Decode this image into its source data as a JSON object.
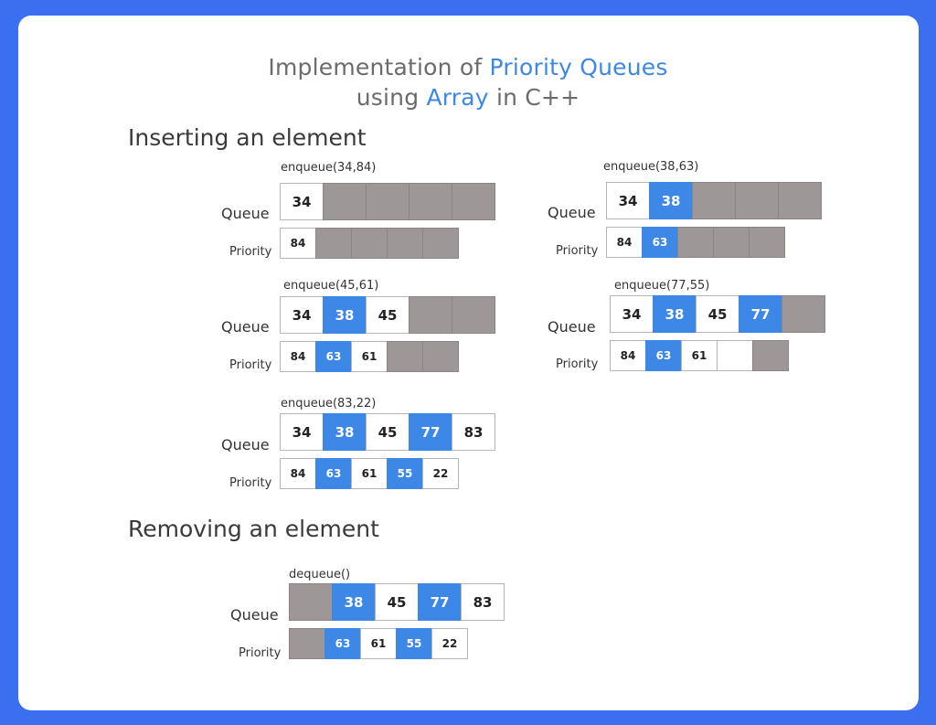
{
  "title": {
    "line1_a": "Implementation of ",
    "line1_b": "Priority Queues",
    "line2_a": "using ",
    "line2_b": "Array",
    "line2_c": " in C++"
  },
  "sections": {
    "insert": "Inserting an element",
    "remove": "Removing an element"
  },
  "labels": {
    "queue": "Queue",
    "priority": "Priority"
  },
  "colors": {
    "accent": "#3d87e6",
    "empty_slot": "#9e9797",
    "background": "#3b6ff0"
  },
  "steps": [
    {
      "op": "enqueue(34,84)",
      "queue": [
        {
          "v": "34",
          "s": "filled"
        },
        {
          "v": "",
          "s": "empty"
        },
        {
          "v": "",
          "s": "empty"
        },
        {
          "v": "",
          "s": "empty"
        },
        {
          "v": "",
          "s": "empty"
        }
      ],
      "priority": [
        {
          "v": "84",
          "s": "filled"
        },
        {
          "v": "",
          "s": "empty"
        },
        {
          "v": "",
          "s": "empty"
        },
        {
          "v": "",
          "s": "empty"
        },
        {
          "v": "",
          "s": "empty"
        }
      ]
    },
    {
      "op": "enqueue(38,63)",
      "queue": [
        {
          "v": "34",
          "s": "filled"
        },
        {
          "v": "38",
          "s": "blue"
        },
        {
          "v": "",
          "s": "empty"
        },
        {
          "v": "",
          "s": "empty"
        },
        {
          "v": "",
          "s": "empty"
        }
      ],
      "priority": [
        {
          "v": "84",
          "s": "filled"
        },
        {
          "v": "63",
          "s": "blue"
        },
        {
          "v": "",
          "s": "empty"
        },
        {
          "v": "",
          "s": "empty"
        },
        {
          "v": "",
          "s": "empty"
        }
      ]
    },
    {
      "op": "enqueue(45,61)",
      "queue": [
        {
          "v": "34",
          "s": "filled"
        },
        {
          "v": "38",
          "s": "blue"
        },
        {
          "v": "45",
          "s": "filled"
        },
        {
          "v": "",
          "s": "empty"
        },
        {
          "v": "",
          "s": "empty"
        }
      ],
      "priority": [
        {
          "v": "84",
          "s": "filled"
        },
        {
          "v": "63",
          "s": "blue"
        },
        {
          "v": "61",
          "s": "filled"
        },
        {
          "v": "",
          "s": "empty"
        },
        {
          "v": "",
          "s": "empty"
        }
      ]
    },
    {
      "op": "enqueue(77,55)",
      "queue": [
        {
          "v": "34",
          "s": "filled"
        },
        {
          "v": "38",
          "s": "blue"
        },
        {
          "v": "45",
          "s": "filled"
        },
        {
          "v": "77",
          "s": "blue"
        },
        {
          "v": "",
          "s": "empty"
        }
      ],
      "priority": [
        {
          "v": "84",
          "s": "filled"
        },
        {
          "v": "63",
          "s": "blue"
        },
        {
          "v": "61",
          "s": "filled"
        },
        {
          "v": "",
          "s": "blank"
        },
        {
          "v": "",
          "s": "empty"
        }
      ]
    },
    {
      "op": "enqueue(83,22)",
      "queue": [
        {
          "v": "34",
          "s": "filled"
        },
        {
          "v": "38",
          "s": "blue"
        },
        {
          "v": "45",
          "s": "filled"
        },
        {
          "v": "77",
          "s": "blue"
        },
        {
          "v": "83",
          "s": "filled"
        }
      ],
      "priority": [
        {
          "v": "84",
          "s": "filled"
        },
        {
          "v": "63",
          "s": "blue"
        },
        {
          "v": "61",
          "s": "filled"
        },
        {
          "v": "55",
          "s": "blue"
        },
        {
          "v": "22",
          "s": "filled"
        }
      ]
    },
    {
      "op": "dequeue()",
      "queue": [
        {
          "v": "",
          "s": "empty"
        },
        {
          "v": "38",
          "s": "blue"
        },
        {
          "v": "45",
          "s": "filled"
        },
        {
          "v": "77",
          "s": "blue"
        },
        {
          "v": "83",
          "s": "filled"
        }
      ],
      "priority": [
        {
          "v": "",
          "s": "empty"
        },
        {
          "v": "63",
          "s": "blue"
        },
        {
          "v": "61",
          "s": "filled"
        },
        {
          "v": "55",
          "s": "blue"
        },
        {
          "v": "22",
          "s": "filled"
        }
      ]
    }
  ]
}
